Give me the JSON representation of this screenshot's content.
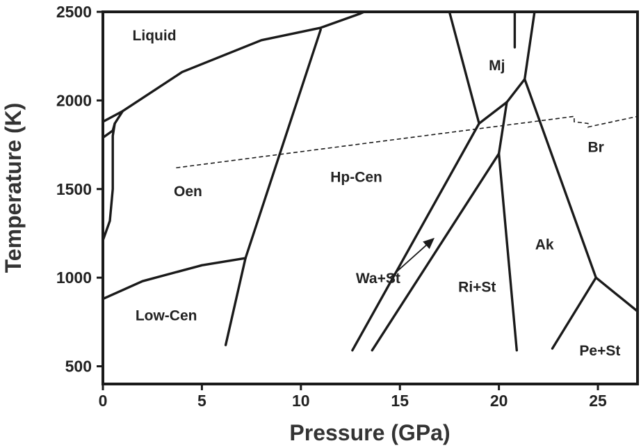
{
  "axes": {
    "x_title": "Pressure (GPa)",
    "y_title": "Temperature (K)",
    "x_ticks": [
      {
        "value": 0,
        "label": "0"
      },
      {
        "value": 5,
        "label": "5"
      },
      {
        "value": 10,
        "label": "10"
      },
      {
        "value": 15,
        "label": "15"
      },
      {
        "value": 20,
        "label": "20"
      },
      {
        "value": 25,
        "label": "25"
      }
    ],
    "y_ticks": [
      {
        "value": 500,
        "label": "500"
      },
      {
        "value": 1000,
        "label": "1000"
      },
      {
        "value": 1500,
        "label": "1500"
      },
      {
        "value": 2000,
        "label": "2000"
      },
      {
        "value": 2500,
        "label": "2500"
      }
    ],
    "x_range": [
      0,
      27
    ],
    "y_range": [
      400,
      2500
    ]
  },
  "labels": [
    {
      "id": "liquid",
      "text": "Liquid",
      "p": 2.6,
      "t": 2340
    },
    {
      "id": "oen",
      "text": "Oen",
      "p": 4.3,
      "t": 1460
    },
    {
      "id": "low-cen",
      "text": "Low-Cen",
      "p": 3.2,
      "t": 760
    },
    {
      "id": "hp-cen",
      "text": "Hp-Cen",
      "p": 12.8,
      "t": 1540
    },
    {
      "id": "mj",
      "text": "Mj",
      "p": 19.9,
      "t": 2170
    },
    {
      "id": "br",
      "text": "Br",
      "p": 24.9,
      "t": 1710
    },
    {
      "id": "ak",
      "text": "Ak",
      "p": 22.3,
      "t": 1160
    },
    {
      "id": "ri-st",
      "text": "Ri+St",
      "p": 18.9,
      "t": 920
    },
    {
      "id": "wa-st",
      "text": "Wa+St",
      "p": 13.9,
      "t": 970
    },
    {
      "id": "pe-st",
      "text": "Pe+St",
      "p": 25.1,
      "t": 560
    }
  ],
  "boundaries": [
    {
      "id": "liquidus",
      "points": [
        [
          0,
          1880
        ],
        [
          1.0,
          1940
        ],
        [
          4,
          2160
        ],
        [
          8,
          2340
        ],
        [
          11,
          2410
        ],
        [
          13,
          2490
        ],
        [
          13.2,
          2500
        ]
      ]
    },
    {
      "id": "oen-inner-left",
      "points": [
        [
          0,
          1210
        ],
        [
          0.35,
          1320
        ],
        [
          0.5,
          1500
        ],
        [
          0.5,
          1800
        ],
        [
          0.6,
          1870
        ],
        [
          1.0,
          1940
        ]
      ]
    },
    {
      "id": "oen-inner-right",
      "points": [
        [
          0,
          1790
        ],
        [
          0.5,
          1830
        ],
        [
          0.6,
          1870
        ]
      ]
    },
    {
      "id": "lowcen-hpcen",
      "points": [
        [
          0,
          880
        ],
        [
          2,
          980
        ],
        [
          5,
          1070
        ],
        [
          7.2,
          1110
        ]
      ]
    },
    {
      "id": "cen-liquid",
      "points": [
        [
          6.2,
          620
        ],
        [
          7.2,
          1110
        ],
        [
          11,
          2400
        ]
      ]
    },
    {
      "id": "mj-left",
      "points": [
        [
          17.5,
          2500
        ],
        [
          19.0,
          1870
        ]
      ]
    },
    {
      "id": "mj-right",
      "points": [
        [
          21.8,
          2500
        ],
        [
          21.3,
          2120
        ]
      ]
    },
    {
      "id": "mj-ak",
      "points": [
        [
          19.0,
          1870
        ],
        [
          20.4,
          1990
        ],
        [
          21.3,
          2120
        ]
      ]
    },
    {
      "id": "wa-hp",
      "points": [
        [
          12.6,
          590
        ],
        [
          19.0,
          1870
        ]
      ]
    },
    {
      "id": "ri-wa",
      "points": [
        [
          13.6,
          590
        ],
        [
          20.0,
          1700
        ],
        [
          20.4,
          1990
        ]
      ]
    },
    {
      "id": "ri-ak",
      "points": [
        [
          20.0,
          1700
        ],
        [
          20.9,
          590
        ]
      ]
    },
    {
      "id": "ak-br",
      "points": [
        [
          21.3,
          2120
        ],
        [
          24.9,
          1000
        ]
      ]
    },
    {
      "id": "br-pe",
      "points": [
        [
          24.9,
          1000
        ],
        [
          27,
          810
        ]
      ]
    },
    {
      "id": "ak-pe",
      "points": [
        [
          22.7,
          600
        ],
        [
          24.9,
          1000
        ]
      ]
    }
  ],
  "marker": {
    "id": "top-tick",
    "points": [
      [
        20.8,
        2500
      ],
      [
        20.8,
        2300
      ]
    ]
  },
  "adiabat": {
    "points": [
      [
        3.7,
        1620
      ],
      [
        23.8,
        1910
      ],
      [
        23.8,
        1880
      ],
      [
        24.5,
        1870
      ],
      [
        24.5,
        1850
      ],
      [
        27,
        1910
      ]
    ]
  },
  "arrow": {
    "from": [
      14.5,
      1000
    ],
    "to": [
      16.7,
      1220
    ]
  }
}
